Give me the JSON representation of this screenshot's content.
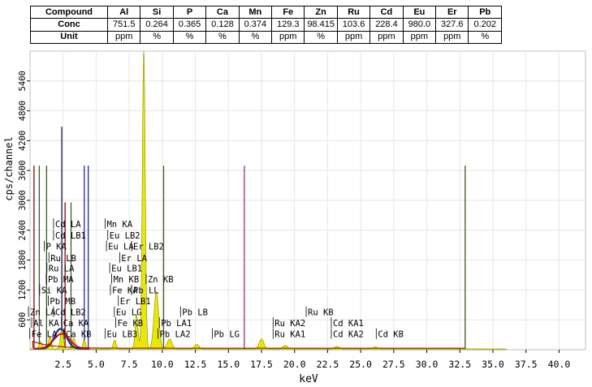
{
  "table": {
    "header": [
      "Compound",
      "Al",
      "Si",
      "P",
      "Ca",
      "Mn",
      "Fe",
      "Zn",
      "Ru",
      "Cd",
      "Eu",
      "Er",
      "Pb"
    ],
    "rows": [
      [
        "Conc",
        "751.5",
        "0.264",
        "0.365",
        "0.128",
        "0.374",
        "129.3",
        "98.415",
        "103.6",
        "228.4",
        "980.0",
        "327.6",
        "0.202"
      ],
      [
        "Unit",
        "ppm",
        "%",
        "%",
        "%",
        "%",
        "ppm",
        "%",
        "ppm",
        "ppm",
        "ppm",
        "ppm",
        "%"
      ]
    ]
  },
  "chart_data": {
    "type": "line",
    "title": "",
    "xlabel": "keV",
    "ylabel": "cps/channel",
    "xlim": [
      0,
      42
    ],
    "ylim": [
      0,
      6000
    ],
    "x_ticks": [
      "2.5",
      "5.0",
      "7.5",
      "10.0",
      "12.5",
      "15.0",
      "17.5",
      "20.0",
      "22.5",
      "25.0",
      "27.5",
      "30.0",
      "32.5",
      "35.0",
      "37.5",
      "40.0"
    ],
    "y_ticks": [
      "600",
      "1200",
      "1800",
      "2400",
      "3000",
      "3600",
      "4200",
      "4800",
      "5400"
    ],
    "colors": {
      "spectrum": "#e6e600",
      "marker": "#3a5a28",
      "marker_violet": "#9b2a8c",
      "background_trace": "#8b0000",
      "blue_trace": "#1e2a9c",
      "red_trace": "#cc1111"
    },
    "spectrum_peaks": [
      {
        "x": 0.8,
        "y": 150
      },
      {
        "x": 1.5,
        "y": 250
      },
      {
        "x": 2.4,
        "y": 420
      },
      {
        "x": 3.3,
        "y": 220
      },
      {
        "x": 4.1,
        "y": 170
      },
      {
        "x": 6.4,
        "y": 180
      },
      {
        "x": 8.05,
        "y": 700
      },
      {
        "x": 8.6,
        "y": 5980
      },
      {
        "x": 9.55,
        "y": 1150
      },
      {
        "x": 10.55,
        "y": 200
      },
      {
        "x": 12.6,
        "y": 90
      },
      {
        "x": 17.5,
        "y": 200
      },
      {
        "x": 19.3,
        "y": 70
      },
      {
        "x": 23.2,
        "y": 50
      },
      {
        "x": 26.1,
        "y": 40
      }
    ],
    "marker_lines": [
      {
        "x": 0.3,
        "y": 3700
      },
      {
        "x": 0.7,
        "y": 3700
      },
      {
        "x": 1.25,
        "y": 3700
      },
      {
        "x": 2.4,
        "y": 4480
      },
      {
        "x": 2.65,
        "y": 2960
      },
      {
        "x": 3.1,
        "y": 2960
      },
      {
        "x": 4.1,
        "y": 3700
      },
      {
        "x": 4.4,
        "y": 3700
      },
      {
        "x": 10.1,
        "y": 3700
      },
      {
        "x": 16.2,
        "y": 3700
      },
      {
        "x": 32.9,
        "y": 3700
      }
    ],
    "annotations": [
      {
        "text": "Cd LA",
        "x": 1.9,
        "y": 2460
      },
      {
        "text": "Mn KA",
        "x": 5.8,
        "y": 2460
      },
      {
        "text": "Cd LB1",
        "x": 1.9,
        "y": 2230
      },
      {
        "text": "Eu LB2",
        "x": 6.0,
        "y": 2230
      },
      {
        "text": "P KA",
        "x": 1.2,
        "y": 2010
      },
      {
        "text": "Eu LA",
        "x": 5.9,
        "y": 2010
      },
      {
        "text": "Er LB2",
        "x": 7.8,
        "y": 2010
      },
      {
        "text": "Ru LB",
        "x": 1.55,
        "y": 1780
      },
      {
        "text": "Er LA",
        "x": 6.9,
        "y": 1780
      },
      {
        "text": "Ru LA",
        "x": 1.4,
        "y": 1570
      },
      {
        "text": "Eu LB1",
        "x": 6.15,
        "y": 1570
      },
      {
        "text": "Pb MA",
        "x": 1.35,
        "y": 1350
      },
      {
        "text": "Mn KB",
        "x": 6.3,
        "y": 1350
      },
      {
        "text": "Zn KB",
        "x": 8.9,
        "y": 1350
      },
      {
        "text": "Si KA",
        "x": 0.85,
        "y": 1130
      },
      {
        "text": "Fe KA",
        "x": 6.2,
        "y": 1130
      },
      {
        "text": "Pb LL",
        "x": 7.8,
        "y": 1130
      },
      {
        "text": "Pb MB",
        "x": 1.5,
        "y": 910
      },
      {
        "text": "Er LB1",
        "x": 6.8,
        "y": 910
      },
      {
        "text": "Zn LA",
        "x": 0.0,
        "y": 690
      },
      {
        "text": "Cd LB2",
        "x": 1.9,
        "y": 690
      },
      {
        "text": "Eu LG",
        "x": 6.5,
        "y": 690
      },
      {
        "text": "Pb LB",
        "x": 11.5,
        "y": 690
      },
      {
        "text": "Ru KB",
        "x": 21.0,
        "y": 690
      },
      {
        "text": "Al KA",
        "x": 0.25,
        "y": 470
      },
      {
        "text": "Ca KA",
        "x": 2.5,
        "y": 470
      },
      {
        "text": "Fe KB",
        "x": 6.6,
        "y": 470
      },
      {
        "text": "Pb LA1",
        "x": 9.9,
        "y": 470
      },
      {
        "text": "Ru KA2",
        "x": 18.5,
        "y": 470
      },
      {
        "text": "Cd KA1",
        "x": 22.9,
        "y": 470
      },
      {
        "text": "Fe LA",
        "x": 0.1,
        "y": 250
      },
      {
        "text": "Ca KB",
        "x": 2.7,
        "y": 250
      },
      {
        "text": "Eu LB3",
        "x": 5.8,
        "y": 250
      },
      {
        "text": "Pb LA2",
        "x": 9.8,
        "y": 250
      },
      {
        "text": "Pb LG",
        "x": 13.9,
        "y": 250
      },
      {
        "text": "Ru KA1",
        "x": 18.5,
        "y": 250
      },
      {
        "text": "Cd KA2",
        "x": 22.9,
        "y": 250
      },
      {
        "text": "Cd KB",
        "x": 26.3,
        "y": 250
      }
    ]
  }
}
